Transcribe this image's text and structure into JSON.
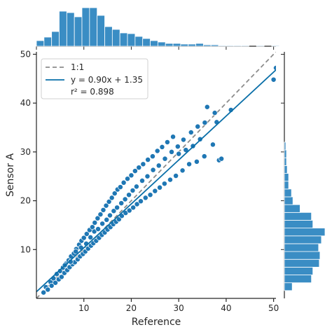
{
  "chart_data": {
    "type": "scatter",
    "xlabel": "Reference",
    "ylabel": "Sensor A",
    "xlim": [
      0,
      50.5
    ],
    "ylim": [
      0,
      50.5
    ],
    "xticks": [
      10,
      20,
      30,
      40,
      50
    ],
    "yticks": [
      10,
      20,
      30,
      40,
      50
    ],
    "grid": false,
    "legend_position": "top-left",
    "colors": {
      "points": "#1f77b4",
      "point_edge": "#ffffff",
      "fit_line": "#0a6fa8",
      "identity_line": "#8c8c8c",
      "bars": "#3a8dc4",
      "bar_edge": "#ffffff",
      "axis": "#262626"
    },
    "legend": {
      "identity_label": "1:1",
      "fit_label": "y = 0.90x + 1.35",
      "r2_label": "r² = 0.898"
    },
    "fit": {
      "slope": 0.9,
      "intercept": 1.35
    },
    "identity": {
      "slope": 1,
      "intercept": 0
    },
    "points": [
      [
        1.5,
        1.2
      ],
      [
        2.0,
        2.3
      ],
      [
        2.4,
        1.8
      ],
      [
        3.0,
        3.3
      ],
      [
        3.2,
        2.6
      ],
      [
        3.6,
        4.1
      ],
      [
        4.0,
        3.2
      ],
      [
        4.3,
        5.0
      ],
      [
        4.7,
        3.9
      ],
      [
        5.0,
        5.6
      ],
      [
        5.3,
        4.4
      ],
      [
        5.6,
        6.3
      ],
      [
        5.9,
        5.2
      ],
      [
        6.2,
        7.1
      ],
      [
        6.5,
        5.8
      ],
      [
        6.8,
        7.8
      ],
      [
        7.0,
        6.4
      ],
      [
        7.3,
        8.6
      ],
      [
        7.6,
        7.0
      ],
      [
        7.9,
        9.2
      ],
      [
        8.1,
        7.4
      ],
      [
        8.4,
        10.1
      ],
      [
        8.7,
        8.0
      ],
      [
        9.0,
        11.0
      ],
      [
        9.2,
        8.6
      ],
      [
        9.5,
        11.8
      ],
      [
        9.8,
        9.1
      ],
      [
        10.0,
        12.4
      ],
      [
        10.3,
        9.6
      ],
      [
        10.6,
        13.2
      ],
      [
        10.9,
        10.2
      ],
      [
        11.2,
        14.0
      ],
      [
        11.5,
        10.8
      ],
      [
        11.8,
        14.6
      ],
      [
        12.0,
        11.3
      ],
      [
        12.3,
        15.5
      ],
      [
        12.6,
        11.8
      ],
      [
        12.9,
        16.4
      ],
      [
        13.2,
        12.4
      ],
      [
        13.5,
        17.2
      ],
      [
        13.8,
        13.0
      ],
      [
        14.1,
        18.1
      ],
      [
        14.4,
        13.5
      ],
      [
        14.7,
        19.0
      ],
      [
        15.0,
        14.1
      ],
      [
        15.3,
        19.8
      ],
      [
        15.6,
        14.6
      ],
      [
        15.9,
        20.6
      ],
      [
        16.2,
        15.2
      ],
      [
        16.5,
        21.5
      ],
      [
        16.8,
        15.7
      ],
      [
        17.1,
        22.3
      ],
      [
        17.4,
        16.2
      ],
      [
        17.7,
        22.8
      ],
      [
        18.0,
        16.9
      ],
      [
        18.4,
        23.7
      ],
      [
        18.8,
        17.5
      ],
      [
        19.2,
        24.5
      ],
      [
        19.6,
        18.0
      ],
      [
        20.0,
        25.2
      ],
      [
        20.4,
        18.6
      ],
      [
        20.8,
        26.1
      ],
      [
        21.2,
        19.3
      ],
      [
        21.6,
        26.8
      ],
      [
        22.0,
        19.9
      ],
      [
        22.5,
        27.5
      ],
      [
        23.0,
        20.6
      ],
      [
        23.5,
        28.4
      ],
      [
        24.0,
        21.2
      ],
      [
        24.5,
        29.1
      ],
      [
        25.0,
        22.0
      ],
      [
        25.5,
        30.2
      ],
      [
        26.0,
        22.7
      ],
      [
        26.5,
        31.0
      ],
      [
        27.0,
        23.5
      ],
      [
        27.6,
        32.0
      ],
      [
        28.2,
        24.3
      ],
      [
        28.8,
        33.1
      ],
      [
        29.4,
        25.1
      ],
      [
        30.0,
        29.6
      ],
      [
        30.8,
        26.2
      ],
      [
        31.5,
        30.4
      ],
      [
        32.2,
        27.5
      ],
      [
        33.0,
        31.2
      ],
      [
        33.8,
        28.0
      ],
      [
        34.5,
        32.6
      ],
      [
        35.4,
        29.1
      ],
      [
        36.0,
        39.2
      ],
      [
        37.2,
        31.5
      ],
      [
        38.0,
        36.1
      ],
      [
        38.5,
        28.3
      ],
      [
        39.0,
        28.6
      ],
      [
        41.0,
        38.6
      ],
      [
        50.0,
        44.8
      ],
      [
        50.5,
        47.2
      ],
      [
        6.0,
        6.8
      ],
      [
        7.2,
        7.5
      ],
      [
        8.3,
        9.6
      ],
      [
        9.4,
        10.4
      ],
      [
        10.5,
        11.2
      ],
      [
        11.4,
        12.5
      ],
      [
        12.2,
        13.7
      ],
      [
        13.0,
        14.2
      ],
      [
        13.9,
        15.3
      ],
      [
        14.8,
        16.1
      ],
      [
        15.5,
        17.0
      ],
      [
        16.3,
        17.9
      ],
      [
        17.0,
        18.6
      ],
      [
        17.9,
        19.5
      ],
      [
        18.7,
        20.3
      ],
      [
        19.5,
        21.2
      ],
      [
        20.3,
        22.1
      ],
      [
        21.1,
        22.9
      ],
      [
        22.3,
        24.1
      ],
      [
        23.4,
        25.0
      ],
      [
        24.6,
        26.3
      ],
      [
        25.8,
        27.2
      ],
      [
        27.1,
        28.6
      ],
      [
        28.5,
        30.0
      ],
      [
        29.8,
        31.1
      ],
      [
        31.0,
        32.5
      ],
      [
        32.6,
        34.0
      ],
      [
        34.0,
        35.2
      ],
      [
        35.5,
        36.0
      ],
      [
        37.6,
        38.0
      ]
    ]
  },
  "marginal_x": {
    "bin_start": 0,
    "bin_width": 1.6,
    "counts": [
      8,
      13,
      21,
      50,
      48,
      42,
      55,
      55,
      44,
      28,
      24,
      19,
      18,
      14,
      11,
      8,
      6,
      4,
      4,
      3,
      3,
      4,
      2,
      2,
      1,
      1,
      1,
      1,
      0,
      1,
      0,
      1
    ]
  },
  "marginal_y": {
    "bin_start": 0,
    "bin_width": 1.6,
    "counts": [
      0,
      11,
      38,
      40,
      49,
      50,
      48,
      52,
      57,
      40,
      38,
      22,
      12,
      10,
      6,
      6,
      4,
      3,
      3,
      2,
      0,
      0,
      0,
      0,
      0,
      0,
      0,
      0,
      0,
      0
    ]
  }
}
